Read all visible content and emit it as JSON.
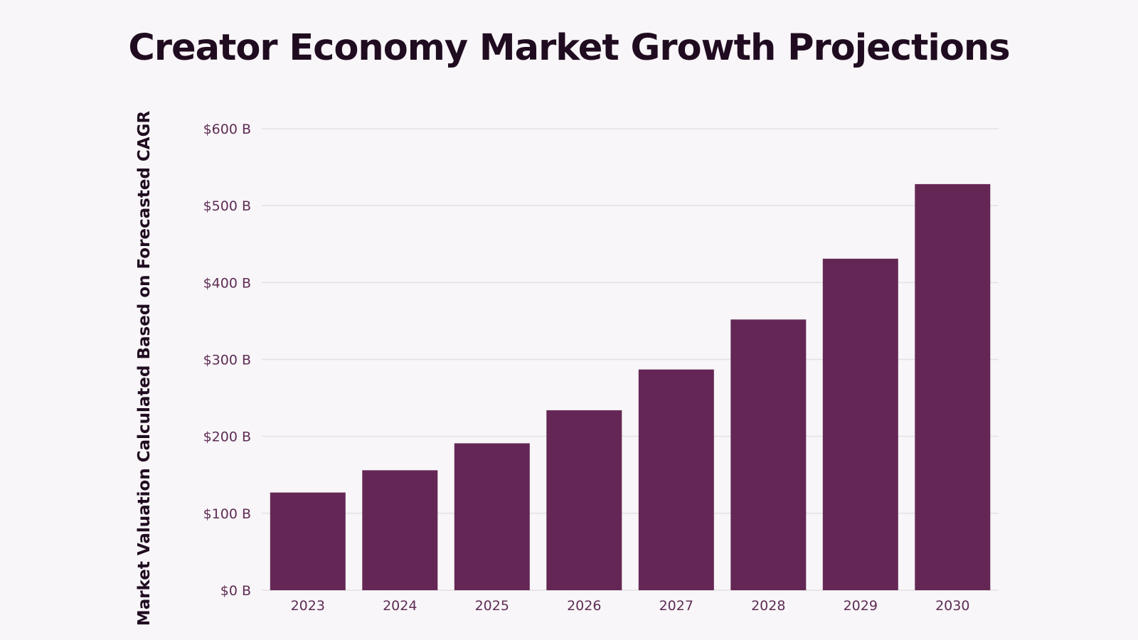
{
  "chart_data": {
    "type": "bar",
    "title": "Creator Economy Market Growth Projections",
    "xlabel": "",
    "ylabel": "Market Valuation Calculated Based on Forecasted CAGR",
    "categories": [
      "2023",
      "2024",
      "2025",
      "2026",
      "2027",
      "2028",
      "2029",
      "2030"
    ],
    "values": [
      127,
      156,
      191,
      234,
      287,
      352,
      431,
      528
    ],
    "unit": "billion USD",
    "ylim": [
      0,
      600
    ],
    "yticks": [
      {
        "value": 0,
        "label": "$0 B"
      },
      {
        "value": 100,
        "label": "$100 B"
      },
      {
        "value": 200,
        "label": "$200 B"
      },
      {
        "value": 300,
        "label": "$300 B"
      },
      {
        "value": 400,
        "label": "$400 B"
      },
      {
        "value": 500,
        "label": "$500 B"
      },
      {
        "value": 600,
        "label": "$600 B"
      }
    ],
    "grid": true,
    "legend": "none",
    "colors": {
      "bar": "#642755",
      "grid": "#e5e0e4",
      "tick_text": "#5e2c55",
      "title_text": "#200c20",
      "background": "#f8f6f8"
    }
  }
}
